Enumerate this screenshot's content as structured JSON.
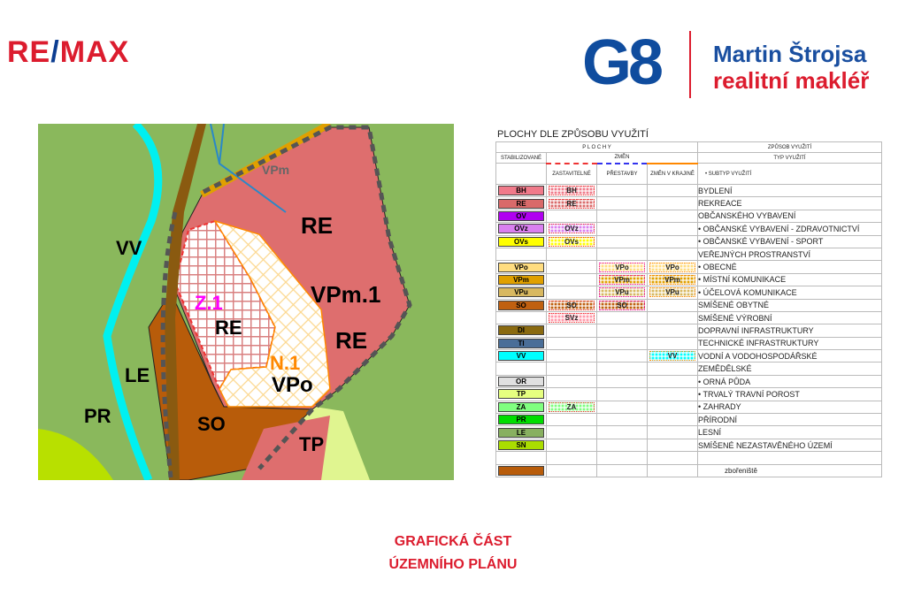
{
  "header": {
    "brand_logo": "RE/MAX",
    "partner_logo": "G8",
    "agent_name": "Martin Štrojsa",
    "agent_role": "realitní makléř"
  },
  "map": {
    "labels": {
      "vv": "VV",
      "le": "LE",
      "pr": "PR",
      "so": "SO",
      "tp": "TP",
      "re_top": "RE",
      "re_mid": "RE",
      "re_right": "RE",
      "vpm1": "VPm.1",
      "vpo": "VPo",
      "z1": "Z.1",
      "n1": "N.1",
      "vpm": "VPm"
    },
    "colors": {
      "forest": "#8ab85c",
      "recreation": "#de6e6e",
      "mixed": "#b85c0a",
      "water": "#00f0f0",
      "grass": "#e0f590"
    }
  },
  "legend": {
    "title": "PLOCHY DLE ZPŮSOBU VYUŽITÍ",
    "h_plochy": "P L O C H Y",
    "h_zpusob": "ZPŮSOB VYUŽITÍ",
    "h_stab": "STABILIZOVANÉ",
    "h_zmen": "ZMĚN",
    "h_typ": "TYP VYUŽITÍ",
    "h_zast": "ZASTAVITELNÉ",
    "h_prest": "PŘESTAVBY",
    "h_krajine": "ZMĚN V KRAJINĚ",
    "h_subtyp": "•    SUBTYP VYUŽITÍ",
    "rows": [
      {
        "stab": "BH",
        "color": "#f07a8a",
        "zast": "BH",
        "label": "BYDLENÍ"
      },
      {
        "stab": "RE",
        "color": "#d96a6a",
        "zast": "RE",
        "label": "REKREACE"
      },
      {
        "stab": "OV",
        "color": "#b000f0",
        "label": "OBČANSKÉHO VYBAVENÍ"
      },
      {
        "stab": "OVz",
        "color": "#da80f0",
        "zast": "OVz",
        "label": "• OBČANSKÉ VYBAVENÍ  - ZDRAVOTNICTVÍ"
      },
      {
        "stab": "OVs",
        "color": "#ffff00",
        "zast": "OVs",
        "label": "• OBČANSKÉ VYBAVENÍ  - SPORT"
      },
      {
        "label": "VEŘEJNÝCH PROSTRANSTVÍ"
      },
      {
        "stab": "VPo",
        "color": "#ffdd80",
        "prest": "VPo",
        "krajine": "VPo",
        "label": "•  OBECNÉ"
      },
      {
        "stab": "VPm",
        "color": "#e0a000",
        "prest": "VPm",
        "krajine": "VPm",
        "label": "•  MÍSTNÍ KOMUNIKACE"
      },
      {
        "stab": "VPu",
        "color": "#d8b860",
        "prest": "VPu",
        "krajine": "VPu",
        "label": "•  ÚČELOVÁ KOMUNIKACE"
      },
      {
        "stab": "SO",
        "color": "#c06010",
        "zast": "SO",
        "prest": "SO",
        "label": "SMÍŠENÉ OBYTNÉ"
      },
      {
        "zast": "SVz",
        "label": "SMÍŠENÉ VÝROBNÍ"
      },
      {
        "stab": "DI",
        "color": "#8a6a10",
        "label": "DOPRAVNÍ INFRASTRUKTURY"
      },
      {
        "stab": "TI",
        "color": "#4a6e98",
        "label": "TECHNICKÉ INFRASTRUKTURY"
      },
      {
        "stab": "VV",
        "color": "#00ffff",
        "krajine": "VV",
        "label": "VODNÍ A VODOHOSPODÁŘSKÉ"
      },
      {
        "label": "ZEMĚDĚLSKÉ"
      },
      {
        "stab": "OR",
        "color": "#e0e0e0",
        "label": "•  ORNÁ PŮDA"
      },
      {
        "stab": "TP",
        "color": "#e6ff80",
        "label": "•  TRVALÝ TRAVNÍ POROST"
      },
      {
        "stab": "ZA",
        "color": "#80ff80",
        "zast": "ZA",
        "label": "•  ZAHRADY"
      },
      {
        "stab": "PR",
        "color": "#00dd00",
        "label": "PŘÍRODNÍ"
      },
      {
        "stab": "LE",
        "color": "#88b060",
        "label": "LESNÍ"
      },
      {
        "stab": "SN",
        "color": "#aadd00",
        "label": "SMÍŠENÉ NEZASTAVĚNÉHO ÚZEMÍ"
      },
      {
        "label": ""
      },
      {
        "stab": "",
        "color": "#b85c0a",
        "label": "zbořeniště"
      }
    ]
  },
  "footer": {
    "line1": "GRAFICKÁ ČÁST",
    "line2": "ÚZEMNÍHO PLÁNU"
  }
}
